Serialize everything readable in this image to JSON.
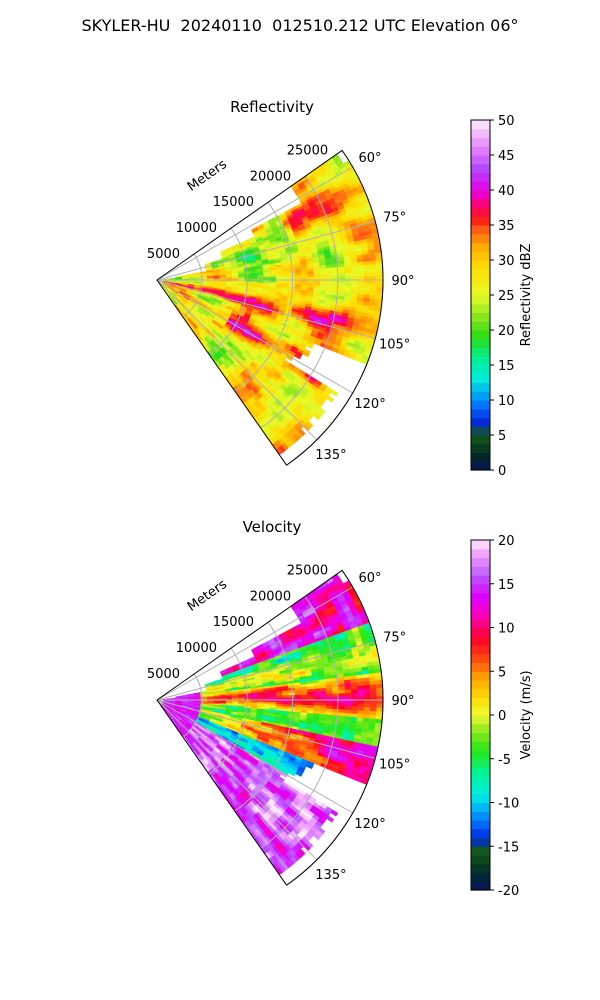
{
  "figure_title": "SKYLER-HU  20240110  012510.212 UTC Elevation 06°",
  "chart_data": [
    {
      "type": "polar-sector",
      "title": "Reflectivity",
      "field": "reflectivity",
      "range_label": "Meters",
      "range_ticks": [
        5000,
        10000,
        15000,
        20000,
        25000
      ],
      "range_tick_labels": [
        "5000",
        "10000",
        "15000",
        "20000",
        "25000"
      ],
      "range_max": 25000,
      "azimuth_range": [
        55,
        145
      ],
      "azimuth_ticks": [
        60,
        75,
        90,
        105,
        120,
        135
      ],
      "azimuth_tick_labels": [
        "60°",
        "75°",
        "90°",
        "105°",
        "120°",
        "135°"
      ],
      "grid": true,
      "colorbar": {
        "label": "Reflectivity dBZ",
        "range": [
          0,
          50
        ],
        "ticks": [
          0,
          5,
          10,
          15,
          20,
          25,
          30,
          35,
          40,
          45,
          50
        ],
        "tick_labels": [
          "0",
          "5",
          "10",
          "15",
          "20",
          "25",
          "30",
          "35",
          "40",
          "45",
          "50"
        ]
      }
    },
    {
      "type": "polar-sector",
      "title": "Velocity",
      "field": "velocity",
      "range_label": "Meters",
      "range_ticks": [
        5000,
        10000,
        15000,
        20000,
        25000
      ],
      "range_tick_labels": [
        "5000",
        "10000",
        "15000",
        "20000",
        "25000"
      ],
      "range_max": 25000,
      "azimuth_range": [
        55,
        145
      ],
      "azimuth_ticks": [
        60,
        75,
        90,
        105,
        120,
        135
      ],
      "azimuth_tick_labels": [
        "60°",
        "75°",
        "90°",
        "105°",
        "120°",
        "135°"
      ],
      "grid": true,
      "colorbar": {
        "label": "Velocity (m/s)",
        "range": [
          -20,
          20
        ],
        "ticks": [
          -20,
          -15,
          -10,
          -5,
          0,
          5,
          10,
          15,
          20
        ],
        "tick_labels": [
          "-20",
          "-15",
          "-10",
          "-5",
          "0",
          "5",
          "10",
          "15",
          "20"
        ]
      }
    }
  ]
}
